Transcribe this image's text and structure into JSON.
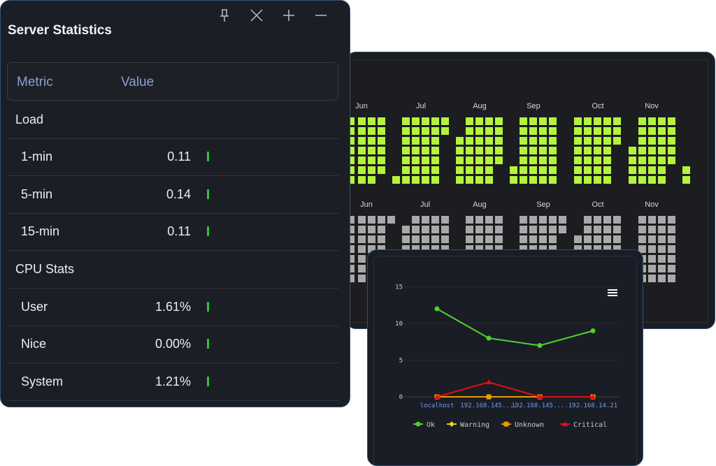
{
  "stats": {
    "title": "Server Statistics",
    "window_buttons": {
      "pin": "pin-icon",
      "close": "close-icon",
      "expand": "plus-icon",
      "minimize": "minus-icon"
    },
    "columns": [
      "Metric",
      "Value"
    ],
    "rows": [
      {
        "label": "Load",
        "value": "",
        "group": true
      },
      {
        "label": "1-min",
        "value": "0.11",
        "indicator": true
      },
      {
        "label": "5-min",
        "value": "0.14",
        "indicator": true
      },
      {
        "label": "15-min",
        "value": "0.11",
        "indicator": true
      },
      {
        "label": "CPU Stats",
        "value": "",
        "group": true
      },
      {
        "label": "User",
        "value": "1.61%",
        "indicator": true
      },
      {
        "label": "Nice",
        "value": "0.00%",
        "indicator": true
      },
      {
        "label": "System",
        "value": "1.21%",
        "indicator": true
      }
    ],
    "indicator_color": "#2fc23a"
  },
  "heatmap": {
    "top_months": [
      "Jun",
      "Jul",
      "Aug",
      "Sep",
      "Oct",
      "Nov"
    ],
    "bottom_months": [
      "Jun",
      "Jul",
      "Aug",
      "Sep",
      "Oct",
      "Nov"
    ],
    "top_color": "#b5f43c",
    "bottom_color": "#a9a9a9"
  },
  "chart_data": {
    "type": "line",
    "categories": [
      "localhost",
      "192.168.145....",
      "192.168.145....",
      "192.168.14.21"
    ],
    "ylim": [
      0,
      15
    ],
    "yticks": [
      0,
      5,
      10,
      15
    ],
    "grid": true,
    "legend": "bottom",
    "menu_icon": "hamburger-menu-icon",
    "series": [
      {
        "name": "Ok",
        "values": [
          12,
          8,
          7,
          9
        ],
        "color": "#4fd22c",
        "marker": "circle"
      },
      {
        "name": "Warning",
        "values": [
          0,
          0,
          0,
          0
        ],
        "color": "#e8d31a",
        "marker": "diamond"
      },
      {
        "name": "Unknown",
        "values": [
          0,
          0,
          0,
          0
        ],
        "color": "#e69a0c",
        "marker": "square"
      },
      {
        "name": "Critical",
        "values": [
          0,
          2,
          0,
          0
        ],
        "color": "#e01010",
        "marker": "triangle"
      }
    ]
  }
}
